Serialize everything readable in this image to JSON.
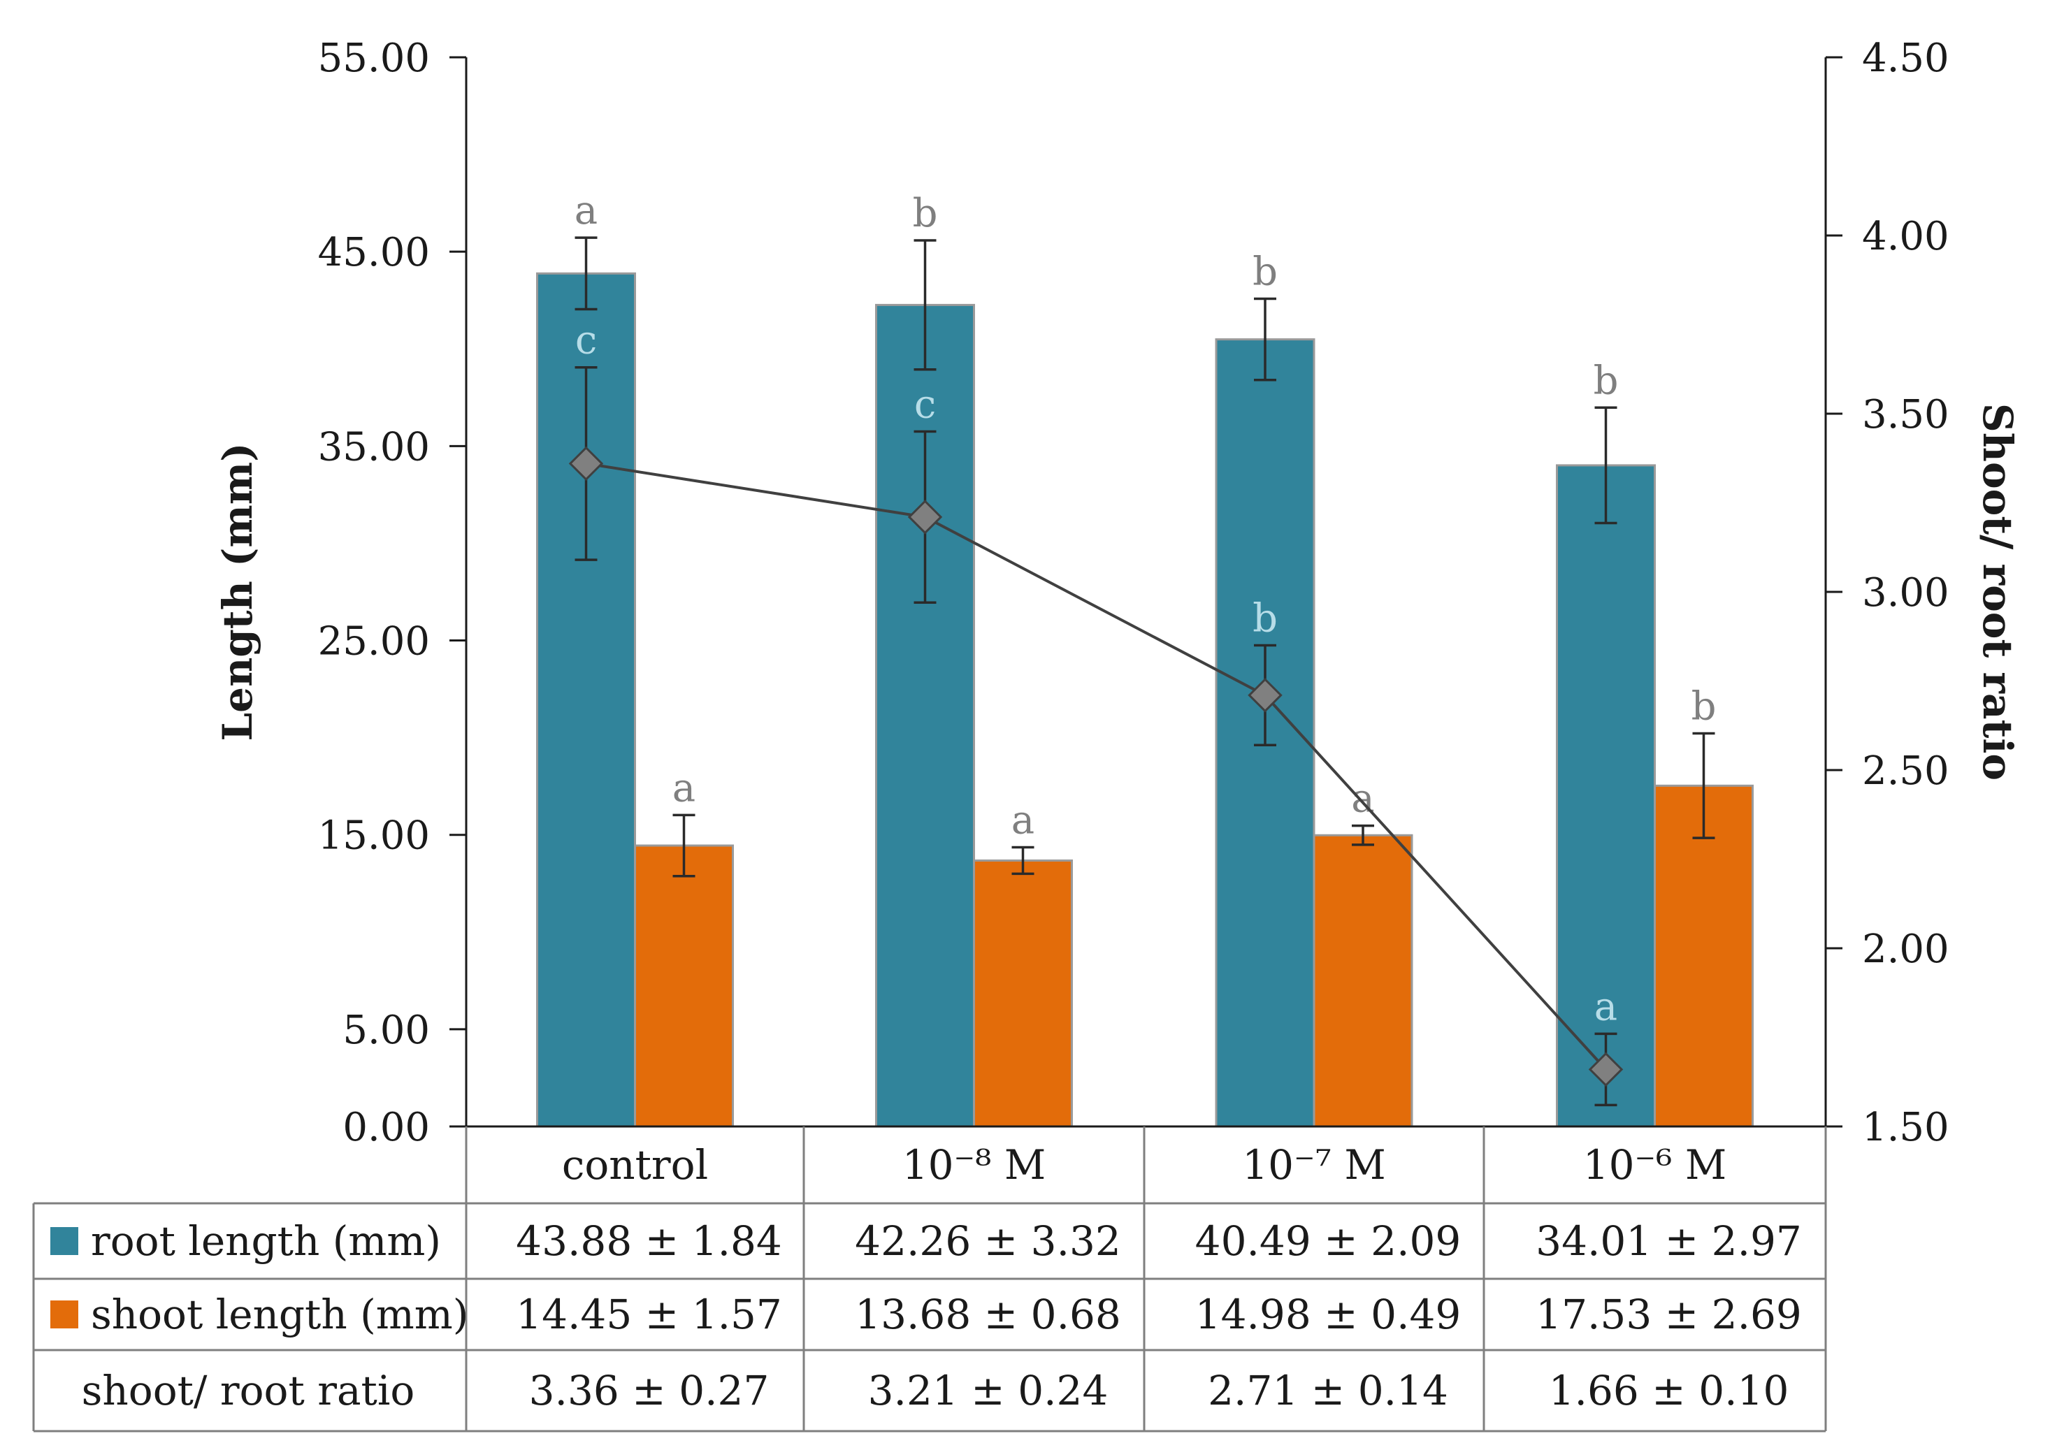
{
  "chart_data": {
    "type": "bar",
    "title": "",
    "categories": [
      "control",
      "10⁻⁸ M",
      "10⁻⁷ M",
      "10⁻⁶ M"
    ],
    "left_axis": {
      "label": "Length (mm)",
      "ylim": [
        0,
        55
      ],
      "ticks": [
        0,
        5,
        15,
        25,
        35,
        45,
        55
      ],
      "tick_labels": [
        "0.00",
        "5.00",
        "15.00",
        "25.00",
        "35.00",
        "45.00",
        "55.00"
      ]
    },
    "right_axis": {
      "label": "Shoot/ root ratio",
      "ylim": [
        1.5,
        4.5
      ],
      "ticks": [
        1.5,
        2.0,
        2.5,
        3.0,
        3.5,
        4.0,
        4.5
      ],
      "tick_labels": [
        "1.50",
        "2.00",
        "2.50",
        "3.00",
        "3.50",
        "4.00",
        "4.50"
      ]
    },
    "series": [
      {
        "name": "root length (mm)",
        "kind": "bar",
        "axis": "left",
        "color": "#31849b",
        "values": [
          43.88,
          42.26,
          40.49,
          34.01
        ],
        "errors": [
          1.84,
          3.32,
          2.09,
          2.97
        ],
        "letters": [
          "a",
          "b",
          "b",
          "b"
        ],
        "letter_color": "#7f7f7f",
        "table_values": [
          "43.88 ± 1.84",
          "42.26 ± 3.32",
          "40.49 ± 2.09",
          "34.01 ± 2.97"
        ]
      },
      {
        "name": "shoot length (mm)",
        "kind": "bar",
        "axis": "left",
        "color": "#e36c0a",
        "values": [
          14.45,
          13.68,
          14.98,
          17.53
        ],
        "errors": [
          1.57,
          0.68,
          0.49,
          2.69
        ],
        "letters": [
          "a",
          "a",
          "a",
          "b"
        ],
        "letter_color": "#7f7f7f",
        "table_values": [
          "14.45 ± 1.57",
          "13.68 ± 0.68",
          "14.98 ± 0.49",
          "17.53 ± 2.69"
        ]
      },
      {
        "name": "shoot/ root ratio",
        "kind": "line",
        "axis": "right",
        "color": "#404040",
        "marker_color": "#808080",
        "values": [
          3.36,
          3.21,
          2.71,
          1.66
        ],
        "errors": [
          0.27,
          0.24,
          0.14,
          0.1
        ],
        "letters": [
          "c",
          "c",
          "b",
          "a"
        ],
        "letter_color": "#b7dde8",
        "table_values": [
          "3.36 ± 0.27",
          "3.21 ± 0.24",
          "2.71 ± 0.14",
          "1.66 ± 0.10"
        ]
      }
    ]
  }
}
